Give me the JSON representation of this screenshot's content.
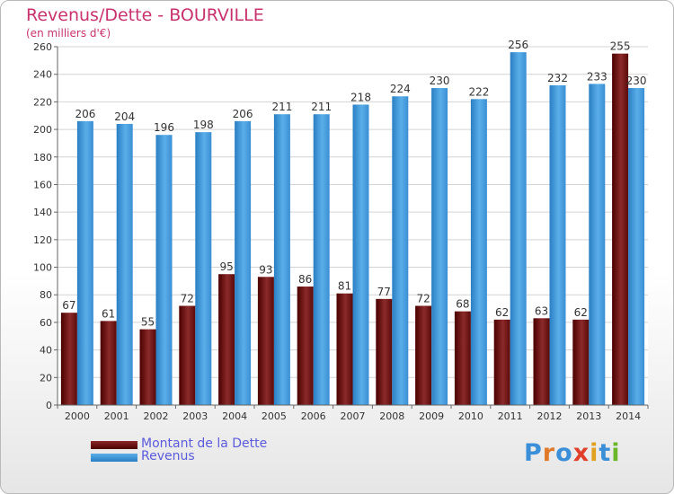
{
  "header": {
    "title": "Revenus/Dette - BOURVILLE",
    "subtitle": "(en milliers d'€)"
  },
  "colors": {
    "title": "#c8326e",
    "dette_top": "#8c2a2a",
    "dette_bottom": "#4a0000",
    "revenus_top": "#5aaee8",
    "revenus_bottom": "#2a7fc4",
    "legend_text": "#5b5bdc"
  },
  "legend": {
    "position": "bottom-left",
    "items": [
      {
        "label": "Montant de la Dette",
        "color": "#6e1a1a"
      },
      {
        "label": "Revenus",
        "color": "#4a9fe0"
      }
    ]
  },
  "logo": {
    "text": "Proxiti",
    "letter_colors": [
      "#3b8fd8",
      "#e07a2a",
      "#3b8fd8",
      "#e0402a",
      "#e0a020",
      "#3b8fd8",
      "#6ab82a"
    ]
  },
  "chart_data": {
    "type": "bar",
    "title": "Revenus/Dette - BOURVILLE",
    "subtitle": "(en milliers d'€)",
    "xlabel": "",
    "ylabel": "",
    "ylim": [
      0,
      260
    ],
    "yticks": [
      0,
      20,
      40,
      60,
      80,
      100,
      120,
      140,
      160,
      180,
      200,
      220,
      240,
      260
    ],
    "grid": true,
    "categories": [
      "2000",
      "2001",
      "2002",
      "2003",
      "2004",
      "2005",
      "2006",
      "2007",
      "2008",
      "2009",
      "2010",
      "2011",
      "2012",
      "2013",
      "2014"
    ],
    "series": [
      {
        "name": "Montant de la Dette",
        "values": [
          67,
          61,
          55,
          72,
          95,
          93,
          86,
          81,
          77,
          72,
          68,
          62,
          63,
          62,
          255
        ]
      },
      {
        "name": "Revenus",
        "values": [
          206,
          204,
          196,
          198,
          206,
          211,
          211,
          218,
          224,
          230,
          222,
          256,
          232,
          233,
          230
        ]
      }
    ]
  }
}
